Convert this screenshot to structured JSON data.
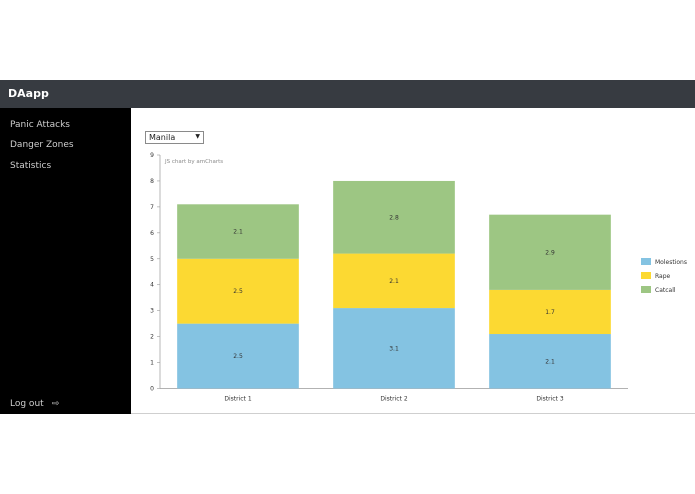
{
  "app": {
    "title": "DAapp"
  },
  "sidebar": {
    "items": [
      {
        "label": "Panic Attacks"
      },
      {
        "label": "Danger Zones"
      },
      {
        "label": "Statistics"
      }
    ],
    "logout_label": "Log out",
    "logout_icon": "sign-out-icon"
  },
  "filter": {
    "selected": "Manila"
  },
  "chart_credit": "JS chart by amCharts",
  "colors": {
    "navbar": "#373b41",
    "sidebar": "#000000",
    "molestions": "#84c3e2",
    "rape": "#fcd932",
    "catcall": "#9dc683"
  },
  "chart_data": {
    "type": "bar",
    "stacked": true,
    "categories": [
      "District 1",
      "District 2",
      "District 3"
    ],
    "series": [
      {
        "name": "Molestions",
        "color": "#84c3e2",
        "values": [
          2.5,
          3.1,
          2.1
        ]
      },
      {
        "name": "Rape",
        "color": "#fcd932",
        "values": [
          2.5,
          2.1,
          1.7
        ]
      },
      {
        "name": "Catcall",
        "color": "#9dc683",
        "values": [
          2.1,
          2.8,
          2.9
        ]
      }
    ],
    "ylim": [
      0,
      9
    ],
    "yticks": [
      0,
      1,
      2,
      3,
      4,
      5,
      6,
      7,
      8,
      9
    ],
    "legend": "right",
    "title": "",
    "xlabel": "",
    "ylabel": ""
  }
}
